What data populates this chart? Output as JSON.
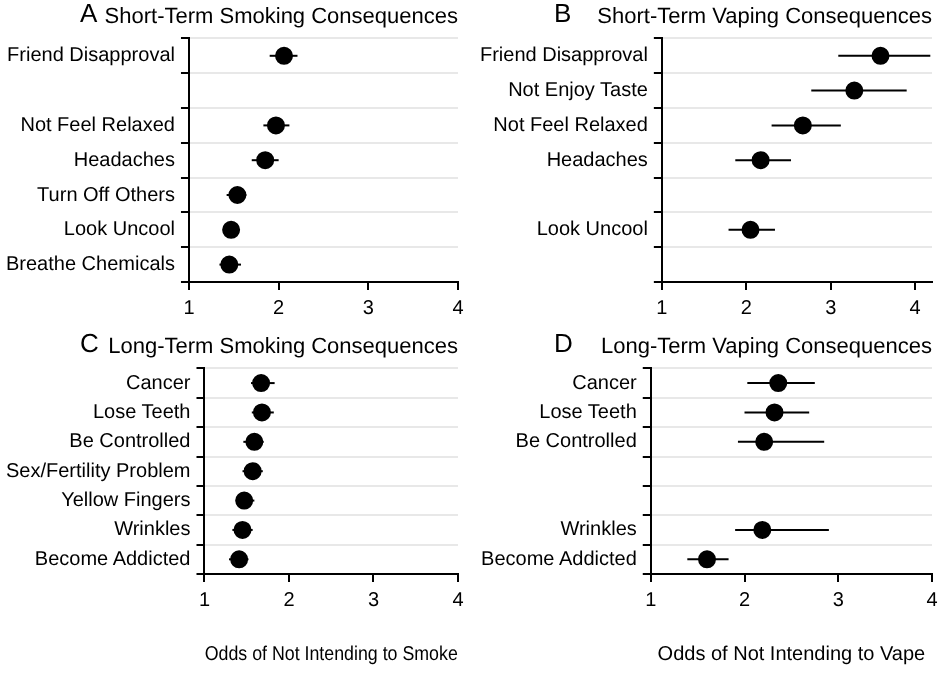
{
  "chart_data": [
    {
      "type": "scatter",
      "orientation": "horizontal",
      "title": "Short-Term Smoking Consequences",
      "annotations": [
        "A"
      ],
      "categories": [
        "Friend Disapproval",
        null,
        "Not Feel Relaxed",
        "Headaches",
        "Turn Off Others",
        "Look Uncool",
        "Breathe Chemicals"
      ],
      "values": [
        2.06,
        null,
        1.97,
        1.85,
        1.54,
        1.47,
        1.45
      ],
      "errors": [
        [
          1.9,
          2.21
        ],
        null,
        [
          1.83,
          2.12
        ],
        [
          1.7,
          2.0
        ],
        [
          1.42,
          1.64
        ],
        [
          1.39,
          1.55
        ],
        [
          1.34,
          1.58
        ]
      ],
      "color": "#000000",
      "xlim": [
        1,
        4
      ],
      "xticks": [
        1,
        2,
        3,
        4
      ],
      "grid": "y",
      "marker": "circle"
    },
    {
      "type": "scatter",
      "orientation": "horizontal",
      "title": "Short-Term Vaping Consequences",
      "annotations": [
        "B"
      ],
      "categories": [
        "Friend Disapproval",
        "Not Enjoy Taste",
        "Not Feel Relaxed",
        "Headaches",
        null,
        "Look Uncool",
        null
      ],
      "values": [
        3.59,
        3.28,
        2.67,
        2.17,
        null,
        2.05,
        null
      ],
      "errors": [
        [
          3.09,
          4.18
        ],
        [
          2.77,
          3.9
        ],
        [
          2.3,
          3.12
        ],
        [
          1.87,
          2.53
        ],
        null,
        [
          1.79,
          2.34
        ],
        null
      ],
      "color": "#000000",
      "xlim": [
        1,
        4.2
      ],
      "xticks": [
        1,
        2,
        3,
        4
      ],
      "grid": "y",
      "marker": "circle"
    },
    {
      "type": "scatter",
      "orientation": "horizontal",
      "title": "Long-Term Smoking Consequences",
      "xlabel": "Odds of Not Intending to Smoke",
      "annotations": [
        "C"
      ],
      "categories": [
        "Cancer",
        "Lose Teeth",
        "Be Controlled",
        "Sex/Fertility Problem",
        "Yellow Fingers",
        "Wrinkles",
        "Become Addicted"
      ],
      "values": [
        1.67,
        1.68,
        1.59,
        1.57,
        1.47,
        1.45,
        1.41
      ],
      "errors": [
        [
          1.55,
          1.83
        ],
        [
          1.56,
          1.82
        ],
        [
          1.46,
          1.7
        ],
        [
          1.45,
          1.69
        ],
        [
          1.37,
          1.59
        ],
        [
          1.33,
          1.57
        ],
        [
          1.29,
          1.52
        ]
      ],
      "color": "#000000",
      "xlim": [
        1,
        4
      ],
      "xticks": [
        1,
        2,
        3,
        4
      ],
      "grid": "y",
      "marker": "circle"
    },
    {
      "type": "scatter",
      "orientation": "horizontal",
      "title": "Long-Term Vaping Consequences",
      "xlabel": "Odds of Not Intending to Vape",
      "annotations": [
        "D"
      ],
      "categories": [
        "Cancer",
        "Lose Teeth",
        "Be Controlled",
        null,
        null,
        "Wrinkles",
        "Become Addicted"
      ],
      "values": [
        2.36,
        2.32,
        2.21,
        null,
        null,
        2.19,
        1.6
      ],
      "errors": [
        [
          2.03,
          2.75
        ],
        [
          2.0,
          2.69
        ],
        [
          1.93,
          2.85
        ],
        null,
        null,
        [
          1.9,
          2.9
        ],
        [
          1.39,
          1.83
        ]
      ],
      "color": "#000000",
      "xlim": [
        1,
        4
      ],
      "xticks": [
        1,
        2,
        3,
        4
      ],
      "grid": "y",
      "marker": "circle"
    }
  ]
}
